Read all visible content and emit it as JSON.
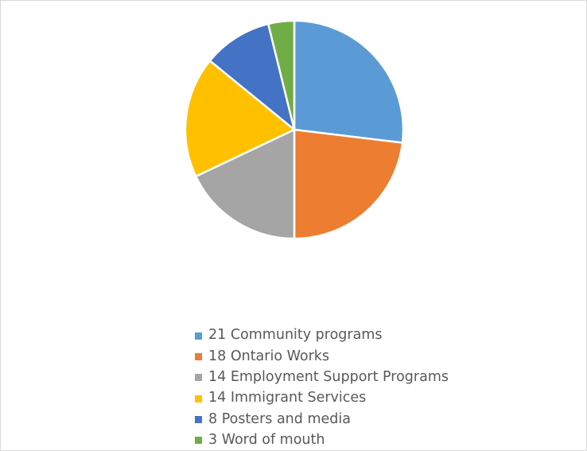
{
  "chart_data": {
    "type": "pie",
    "title": "",
    "legend_position": "bottom",
    "slices": [
      {
        "label": "21 Community programs",
        "value": 21,
        "color": "#5B9BD5"
      },
      {
        "label": "18 Ontario Works",
        "value": 18,
        "color": "#ED7D31"
      },
      {
        "label": "14 Employment Support Programs",
        "value": 14,
        "color": "#A5A5A5"
      },
      {
        "label": "14 Immigrant Services",
        "value": 14,
        "color": "#FFC000"
      },
      {
        "label": "8 Posters and media",
        "value": 8,
        "color": "#4472C4"
      },
      {
        "label": "3 Word of mouth",
        "value": 3,
        "color": "#70AD47"
      }
    ]
  }
}
